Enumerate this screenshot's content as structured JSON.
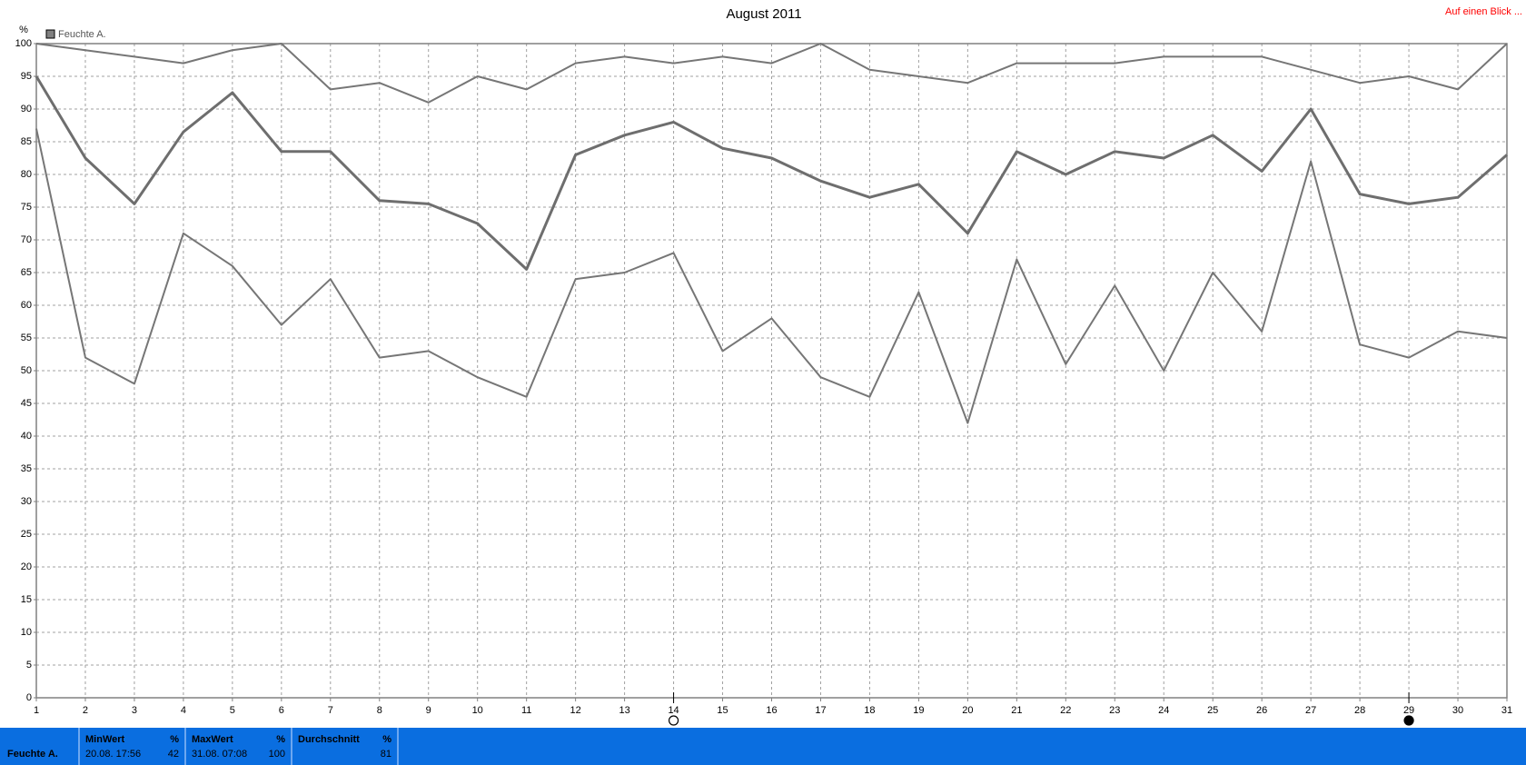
{
  "chart_data": {
    "type": "line",
    "title": "August 2011",
    "y_label": "%",
    "legend": "Feuchte A.",
    "legend_color": "#808080",
    "corner_link": "Auf einen Blick ...",
    "x": [
      1,
      2,
      3,
      4,
      5,
      6,
      7,
      8,
      9,
      10,
      11,
      12,
      13,
      14,
      15,
      16,
      17,
      18,
      19,
      20,
      21,
      22,
      23,
      24,
      25,
      26,
      27,
      28,
      29,
      30,
      31
    ],
    "xlim": [
      1,
      31
    ],
    "ylim": [
      0,
      100
    ],
    "yticks": [
      0,
      5,
      10,
      15,
      20,
      25,
      30,
      35,
      40,
      45,
      50,
      55,
      60,
      65,
      70,
      75,
      80,
      85,
      90,
      95,
      100
    ],
    "grid": true,
    "series": [
      {
        "color": "#767676",
        "width": 2,
        "values": [
          100,
          99,
          98,
          97,
          99,
          100,
          93,
          94,
          91,
          95,
          93,
          97,
          98,
          97,
          98,
          97,
          100,
          96,
          95,
          94,
          97,
          97,
          97,
          98,
          98,
          98,
          96,
          94,
          95,
          93,
          100
        ]
      },
      {
        "color": "#6e6e6e",
        "width": 3,
        "values": [
          95,
          82.5,
          75.5,
          86.5,
          92.5,
          83.5,
          83.5,
          76,
          75.5,
          72.5,
          65.5,
          83,
          86,
          88,
          84,
          82.5,
          79,
          76.5,
          78.5,
          71,
          83.5,
          80,
          83.5,
          82.5,
          86,
          80.5,
          90,
          77,
          75.5,
          76.5,
          83
        ]
      },
      {
        "color": "#767676",
        "width": 2,
        "values": [
          87,
          52,
          48,
          71,
          66,
          57,
          64,
          52,
          53,
          49,
          46,
          64,
          65,
          68,
          53,
          58,
          49,
          46,
          62,
          42,
          67,
          51,
          63,
          50,
          65,
          56,
          82,
          54,
          52,
          56,
          55
        ]
      }
    ],
    "moon_markers": [
      {
        "x": 14,
        "filled": false
      },
      {
        "x": 29,
        "filled": true
      }
    ]
  },
  "stats": {
    "row_label": "Feuchte A.",
    "columns": [
      {
        "header": "MinWert",
        "unit": "%",
        "date": "20.08.  17:56",
        "value": 42
      },
      {
        "header": "MaxWert",
        "unit": "%",
        "date": "31.08.  07:08",
        "value": 100
      },
      {
        "header": "Durchschnitt",
        "unit": "%",
        "value": 81
      }
    ]
  }
}
